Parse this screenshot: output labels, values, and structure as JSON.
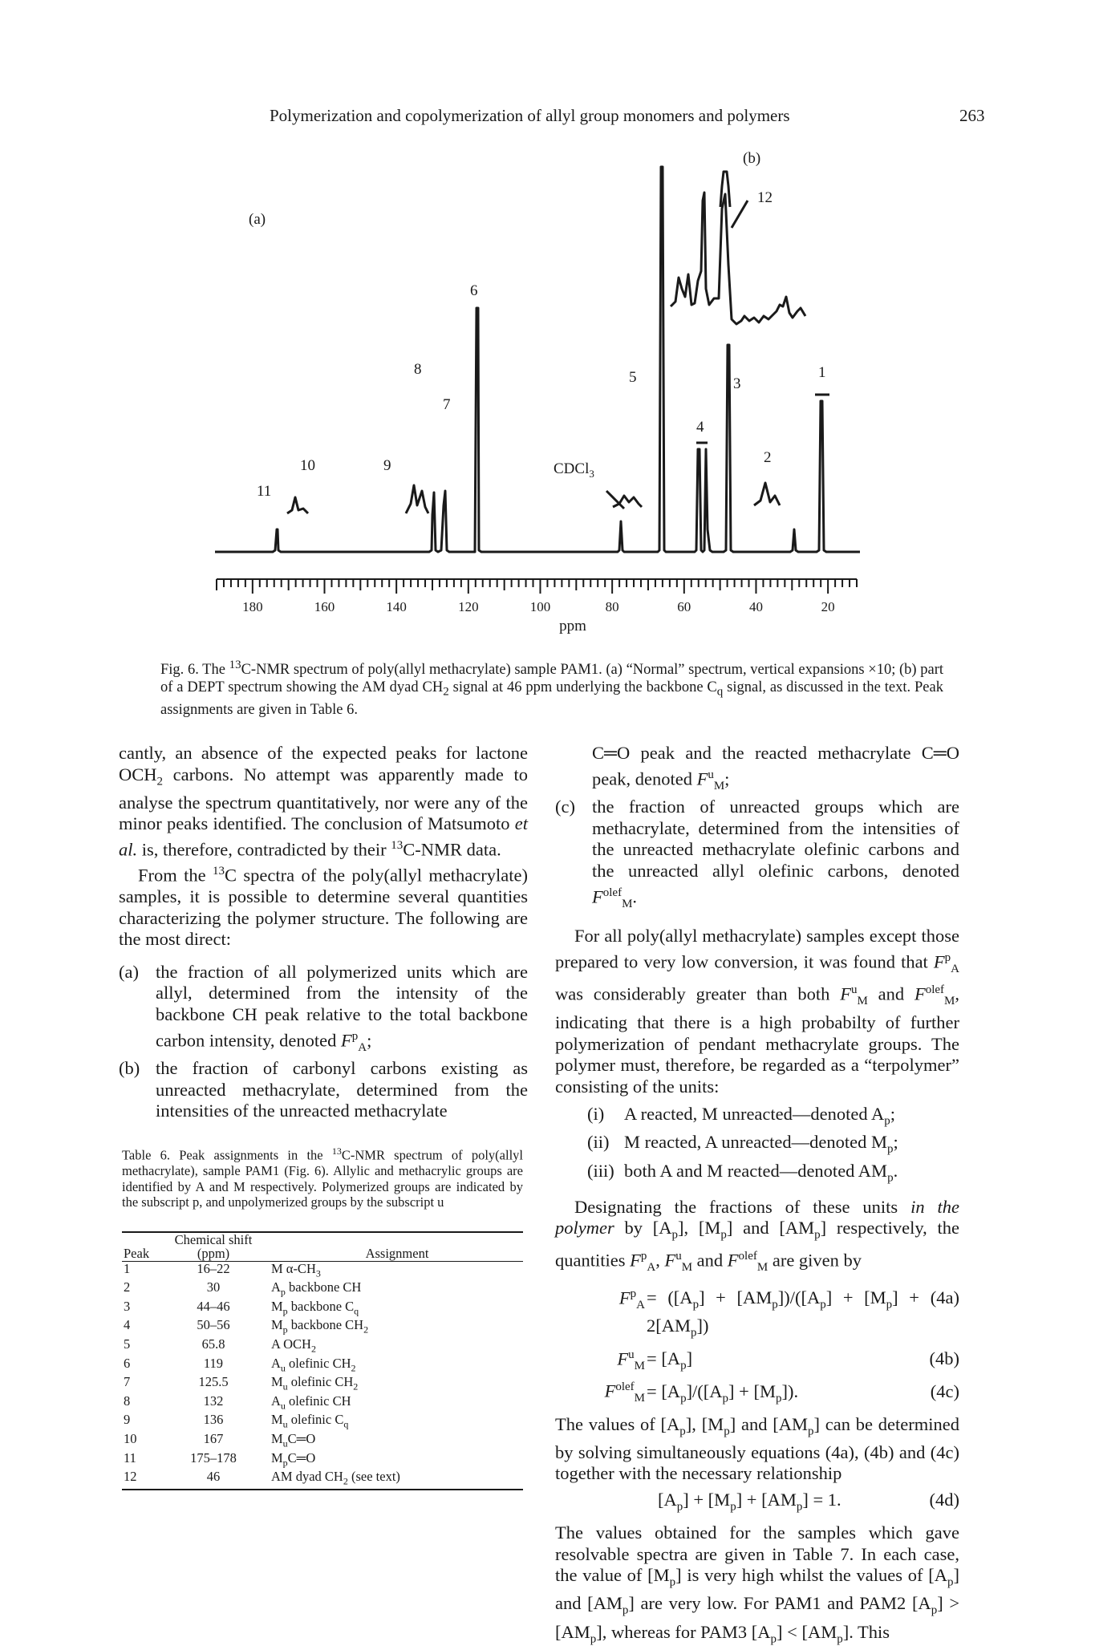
{
  "header": {
    "running_title": "Polymerization and copolymerization of allyl group monomers and polymers",
    "page_number": "263"
  },
  "figure": {
    "panel_a": "(a)",
    "panel_b": "(b)",
    "peak_labels": [
      "1",
      "2",
      "3",
      "4",
      "5",
      "6",
      "7",
      "8",
      "9",
      "10",
      "11",
      "12"
    ],
    "solvent_label": "CDCl",
    "solvent_sub": "3",
    "axis_ticks": [
      "180",
      "160",
      "140",
      "120",
      "100",
      "80",
      "60",
      "40",
      "20"
    ],
    "axis_label": "ppm"
  },
  "caption": {
    "text_1": "Fig. 6. The ",
    "sup_13": "13",
    "text_2": "C-NMR spectrum of poly(allyl methacrylate) sample PAM1. (a) “Normal” spectrum, vertical expansions ×10; (b) part of a DEPT spectrum showing the AM dyad CH",
    "sub_2": "2",
    "text_3": " signal at 46 ppm underlying the backbone C",
    "sub_q": "q",
    "text_4": " signal, as discussed in the text. Peak assignments are given in Table 6."
  },
  "left_col": {
    "p1_a": "cantly, an absence of the expected peaks for lactone OCH",
    "p1_sub": "2",
    "p1_b": " carbons. No attempt was apparently made to analyse the spectrum quantitatively, nor were any of the minor peaks identified. The conclusion of Matsumoto ",
    "p1_etal": "et al.",
    "p1_c": " is, therefore, contradicted by their ",
    "p1_sup": "13",
    "p1_d": "C-NMR data.",
    "p2_a": "From the ",
    "p2_sup": "13",
    "p2_b": "C spectra of the poly(allyl methacrylate) samples, it is possible to determine several quantities characterizing the polymer structure. The following are the most direct:",
    "item_a_mk": "(a)",
    "item_a": "the fraction of all polymerized units which are allyl, determined from the intensity of the backbone CH peak relative to the total backbone carbon intensity, denoted ",
    "item_a_end": ";",
    "item_b_mk": "(b)",
    "item_b": "the fraction of carbonyl carbons existing as unreacted methacrylate, determined from the intensities of the unreacted methacrylate"
  },
  "table6": {
    "caption_a": "Table 6. Peak assignments in the ",
    "caption_sup": "13",
    "caption_b": "C-NMR spectrum of poly(allyl methacrylate), sample PAM1 (Fig. 6). Allylic and methacrylic groups are identified by A and M respectively. Polymerized groups are indicated by the subscript p, and unpolymerized groups by the subscript u",
    "headers": {
      "peak": "Peak",
      "shift_line1": "Chemical shift",
      "shift_line2": "(ppm)",
      "assignment": "Assignment"
    },
    "rows": [
      {
        "peak": "1",
        "shift": "16–22",
        "a": "M α-CH",
        "s": "3",
        "b": ""
      },
      {
        "peak": "2",
        "shift": "30",
        "a": "A",
        "s": "p",
        "b": " backbone CH"
      },
      {
        "peak": "3",
        "shift": "44–46",
        "a": "M",
        "s": "p",
        "b": " backbone C_q"
      },
      {
        "peak": "4",
        "shift": "50–56",
        "a": "M",
        "s": "p",
        "b": " backbone CH₂"
      },
      {
        "peak": "5",
        "shift": "65.8",
        "a": "A OCH",
        "s": "2",
        "b": ""
      },
      {
        "peak": "6",
        "shift": "119",
        "a": "A",
        "s": "u",
        "b": " olefinic CH₂"
      },
      {
        "peak": "7",
        "shift": "125.5",
        "a": "M",
        "s": "u",
        "b": " olefinic CH₂"
      },
      {
        "peak": "8",
        "shift": "132",
        "a": "A",
        "s": "u",
        "b": " olefinic CH"
      },
      {
        "peak": "9",
        "shift": "136",
        "a": "M",
        "s": "u",
        "b": " olefinic C_q"
      },
      {
        "peak": "10",
        "shift": "167",
        "a": "M",
        "s": "u",
        "b": "C═O"
      },
      {
        "peak": "11",
        "shift": "175–178",
        "a": "M",
        "s": "p",
        "b": "C═O"
      },
      {
        "peak": "12",
        "shift": "46",
        "a": "AM dyad CH",
        "s": "2",
        "b": " (see text)"
      }
    ]
  },
  "right_col": {
    "cont_1": "C═O peak and the reacted methacrylate C═O peak, denoted ",
    "cont_1_end": ";",
    "item_c_mk": "(c)",
    "item_c": "the fraction of unreacted groups which are methacrylate, determined from the intensities of the unreacted methacrylate olefinic carbons and the unreacted allyl olefinic carbons, denoted ",
    "item_c_end": ".",
    "p3_a": "For all poly(allyl methacrylate) samples except those prepared to very low conversion, it was found that ",
    "p3_b": " was considerably greater than both ",
    "p3_c": " and ",
    "p3_d": ", indicating that there is a high probabilty of further polymerization of pendant methacrylate groups. The polymer must, therefore, be regarded as a “terpolymer” consisting of the units:",
    "unit_i_mk": "(i)",
    "unit_i": "A reacted, M unreacted—denoted A",
    "unit_i_sub": "p",
    "unit_i_end": ";",
    "unit_ii_mk": "(ii)",
    "unit_ii": "M reacted, A unreacted—denoted M",
    "unit_ii_sub": "p",
    "unit_ii_end": ";",
    "unit_iii_mk": "(iii)",
    "unit_iii": "both A and M reacted—denoted AM",
    "unit_iii_sub": "p",
    "unit_iii_end": ".",
    "p4_a": "Designating the fractions of these units ",
    "p4_ital": "in the polymer",
    "p4_b": " by [A",
    "p4_c": "], [M",
    "p4_d": "] and [AM",
    "p4_e": "] respectively, the quantities ",
    "p4_f": ", ",
    "p4_g": " and ",
    "p4_h": " are given by",
    "eq4a_rhs": "= ([A_p] + [AM_p])/([A_p] + [M_p] + 2[AM_p])",
    "eq4a_num": "(4a)",
    "eq4b_rhs": "= [A_p]",
    "eq4b_num": "(4b)",
    "eq4c_rhs": "= [A_p]/([A_p] + [M_p]).",
    "eq4c_num": "(4c)",
    "p5": "The values of [A_p], [M_p] and [AM_p] can be determined by solving simultaneously equations (4a), (4b) and (4c) together with the necessary relationship",
    "eq4d": "[A_p] + [M_p] + [AM_p] = 1.",
    "eq4d_num": "(4d)",
    "p6": "The values obtained for the samples which gave resolvable spectra are given in Table 7. In each case, the value of [M_p] is very high whilst the values of [A_p] and [AM_p] are very low. For PAM1 and PAM2 [A_p] > [AM_p], whereas for PAM3 [A_p] < [AM_p]. This"
  },
  "symbols": {
    "F": "F",
    "A": "A",
    "M": "M",
    "p": "p",
    "u": "u",
    "olef": "olef"
  }
}
